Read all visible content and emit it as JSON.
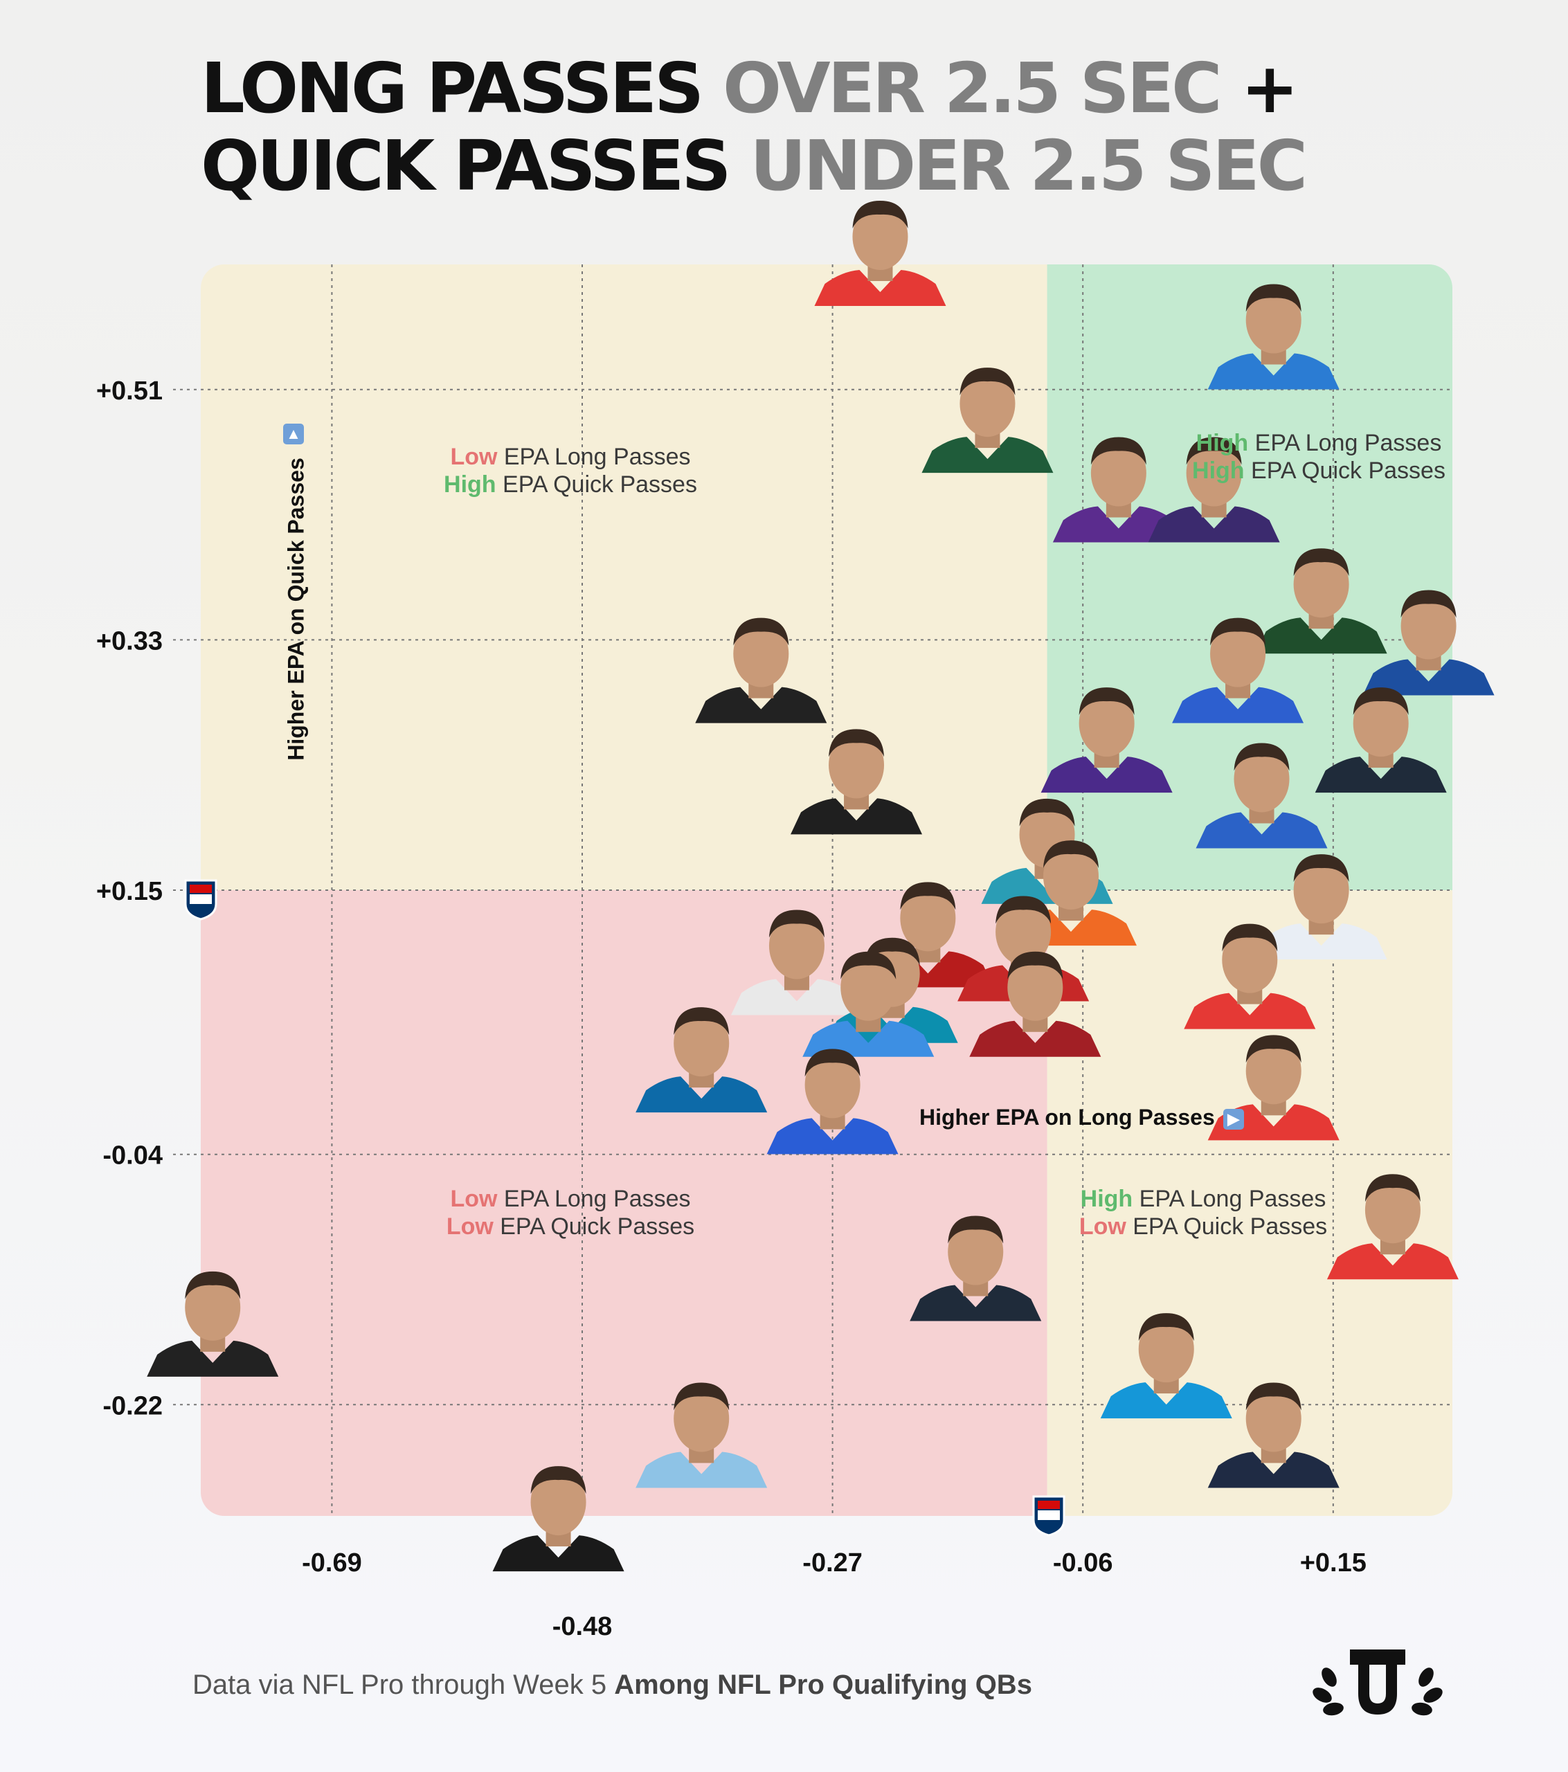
{
  "title": {
    "line1_dark": "LONG PASSES",
    "line1_gray": "OVER 2.5 SEC",
    "line1_plus": "+",
    "line2_dark": "QUICK PASSES",
    "line2_gray": "UNDER  2.5 SEC"
  },
  "quadrants": {
    "top_left": {
      "long_level": "Low",
      "long_text": "EPA Long Passes",
      "quick_level": "High",
      "quick_text": "EPA Quick Passes"
    },
    "top_right": {
      "long_level": "High",
      "long_text": "EPA Long Passes",
      "quick_level": "High",
      "quick_text": "EPA Quick Passes"
    },
    "bottom_left": {
      "long_level": "Low",
      "long_text": "EPA Long Passes",
      "quick_level": "Low",
      "quick_text": "EPA Quick Passes"
    },
    "bottom_right": {
      "long_level": "High",
      "long_text": "EPA Long Passes",
      "quick_level": "Low",
      "quick_text": "EPA Quick Passes"
    }
  },
  "y_axis_title": "Higher EPA on Quick Passes",
  "x_axis_title": "Higher EPA on Long Passes",
  "footer": {
    "text": "Data via NFL Pro through Week 5",
    "bold": "Among NFL Pro Qualifying QBs"
  },
  "chart_data": {
    "type": "scatter",
    "xlabel": "Higher EPA on Long Passes",
    "ylabel": "Higher EPA on Quick Passes",
    "x_ticks": [
      "-0.69",
      "-0.48",
      "-0.27",
      "-0.06",
      "+0.15"
    ],
    "y_ticks": [
      "+0.51",
      "+0.33",
      "+0.15",
      "-0.04",
      "-0.22"
    ],
    "xlim": [
      -0.8,
      0.25
    ],
    "ylim": [
      -0.3,
      0.6
    ],
    "x_divider": -0.09,
    "y_divider": 0.15,
    "colors": {
      "quadrant_yellow": "#f6efd8",
      "quadrant_green": "#c4ead0",
      "quadrant_red": "#f6d2d3",
      "grid": "#777777"
    },
    "points": [
      {
        "x": -0.23,
        "y": 0.6,
        "jersey": "#e53935"
      },
      {
        "x": 0.1,
        "y": 0.54,
        "jersey": "#2b7cd3"
      },
      {
        "x": -0.14,
        "y": 0.48,
        "jersey": "#1f5c3a"
      },
      {
        "x": -0.03,
        "y": 0.43,
        "jersey": "#5b2c8e"
      },
      {
        "x": 0.05,
        "y": 0.43,
        "jersey": "#3b2a6e"
      },
      {
        "x": -0.33,
        "y": 0.3,
        "jersey": "#222222"
      },
      {
        "x": 0.14,
        "y": 0.35,
        "jersey": "#1f4e2c"
      },
      {
        "x": 0.23,
        "y": 0.32,
        "jersey": "#1d4fa0"
      },
      {
        "x": 0.07,
        "y": 0.3,
        "jersey": "#2d5fcf"
      },
      {
        "x": -0.04,
        "y": 0.25,
        "jersey": "#4b2a8a"
      },
      {
        "x": 0.09,
        "y": 0.21,
        "jersey": "#2b62c7"
      },
      {
        "x": 0.19,
        "y": 0.25,
        "jersey": "#1f2b3a"
      },
      {
        "x": -0.25,
        "y": 0.22,
        "jersey": "#1f1f1f"
      },
      {
        "x": -0.09,
        "y": 0.17,
        "jersey": "#2a9db5"
      },
      {
        "x": 0.14,
        "y": 0.13,
        "jersey": "#e9eef5"
      },
      {
        "x": -0.19,
        "y": 0.11,
        "jersey": "#b71c1c"
      },
      {
        "x": -0.07,
        "y": 0.14,
        "jersey": "#f06a24"
      },
      {
        "x": -0.11,
        "y": 0.1,
        "jersey": "#c62828"
      },
      {
        "x": -0.3,
        "y": 0.09,
        "jersey": "#e9e9e9"
      },
      {
        "x": -0.22,
        "y": 0.07,
        "jersey": "#0c8fae"
      },
      {
        "x": -0.24,
        "y": 0.06,
        "jersey": "#3d8fe3"
      },
      {
        "x": 0.08,
        "y": 0.08,
        "jersey": "#e53935"
      },
      {
        "x": -0.1,
        "y": 0.06,
        "jersey": "#a21f25"
      },
      {
        "x": -0.38,
        "y": 0.02,
        "jersey": "#0d6aa8"
      },
      {
        "x": -0.27,
        "y": -0.01,
        "jersey": "#2a5dd6"
      },
      {
        "x": 0.1,
        "y": 0.0,
        "jersey": "#e53935"
      },
      {
        "x": 0.2,
        "y": -0.1,
        "jersey": "#e53935"
      },
      {
        "x": -0.15,
        "y": -0.13,
        "jersey": "#1f2b3a"
      },
      {
        "x": -0.79,
        "y": -0.17,
        "jersey": "#222222"
      },
      {
        "x": 0.01,
        "y": -0.2,
        "jersey": "#1597d8"
      },
      {
        "x": 0.1,
        "y": -0.25,
        "jersey": "#1f2b44"
      },
      {
        "x": -0.38,
        "y": -0.25,
        "jersey": "#8ec3e6"
      },
      {
        "x": -0.5,
        "y": -0.31,
        "jersey": "#1a1a1a"
      }
    ]
  }
}
